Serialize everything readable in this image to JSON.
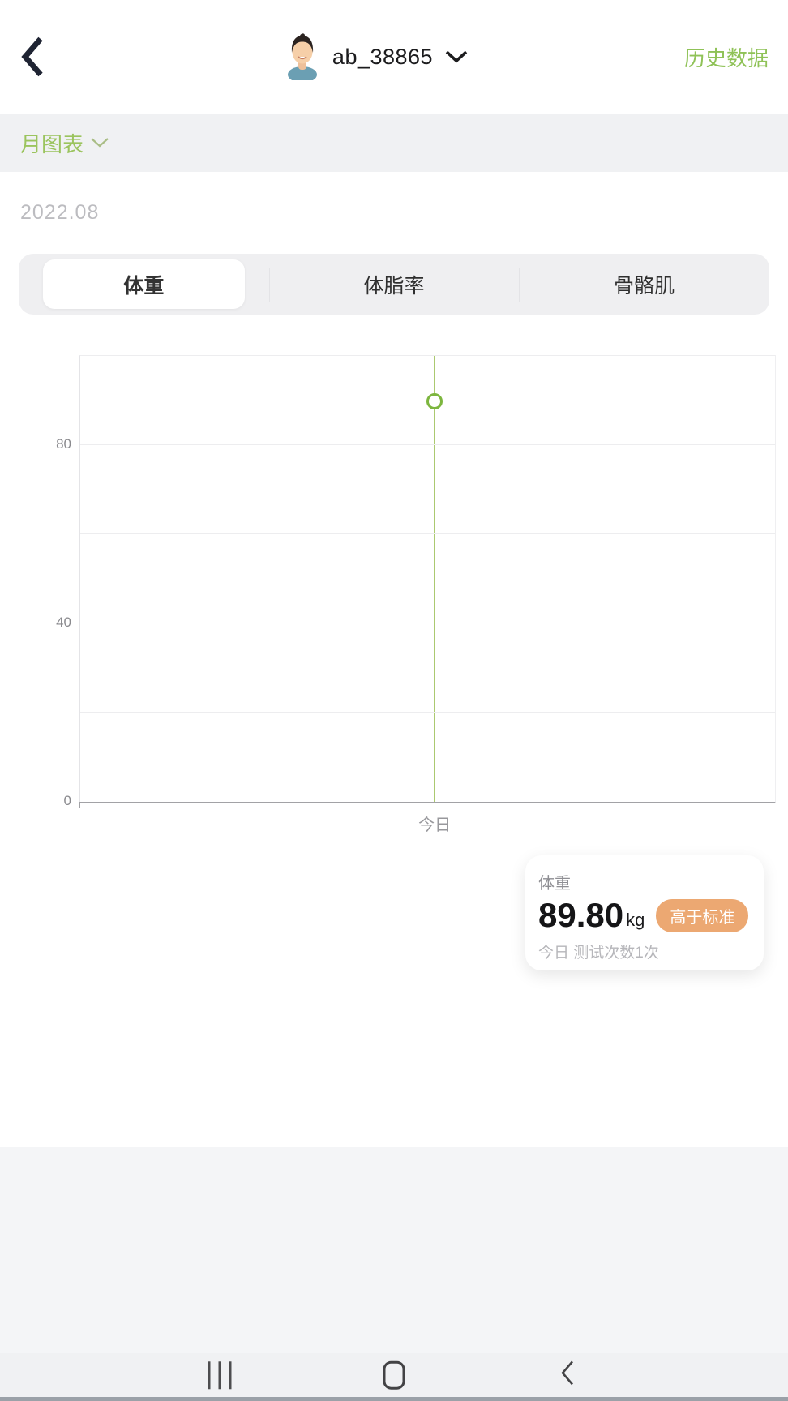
{
  "header": {
    "username": "ab_38865",
    "history_label": "历史数据"
  },
  "period_selector": {
    "label": "月图表"
  },
  "date_label": "2022.08",
  "tabs": [
    {
      "label": "体重",
      "active": true
    },
    {
      "label": "体脂率",
      "active": false
    },
    {
      "label": "骨骼肌",
      "active": false
    }
  ],
  "chart_data": {
    "type": "scatter",
    "title": "",
    "xlabel": "",
    "ylabel": "",
    "x_categories": [
      "今日"
    ],
    "x_position_fraction": 0.51,
    "series": [
      {
        "name": "体重",
        "values": [
          89.8
        ]
      }
    ],
    "unit": "kg",
    "ylim": [
      0,
      100
    ],
    "yticks": [
      0,
      40,
      80
    ],
    "grid_step": 20,
    "grid": "on",
    "legend": "none",
    "line_color": "#abc970",
    "marker_color": "#7db63f"
  },
  "summary_card": {
    "metric_label": "体重",
    "value": "89.80",
    "unit": "kg",
    "badge": "高于标准",
    "badge_color": "#eca872",
    "footer": "今日 测试次数1次"
  },
  "colors": {
    "accent_green": "#8fc257",
    "dark_text": "#1c1c1e",
    "band_bg": "#f0f1f3"
  },
  "icons": {
    "back": "chevron-left",
    "user_dropdown": "chevron-down",
    "period_dropdown": "chevron-down",
    "nav_recents": "three-vertical-bars",
    "nav_home": "rounded-square",
    "nav_back": "chevron-left"
  }
}
